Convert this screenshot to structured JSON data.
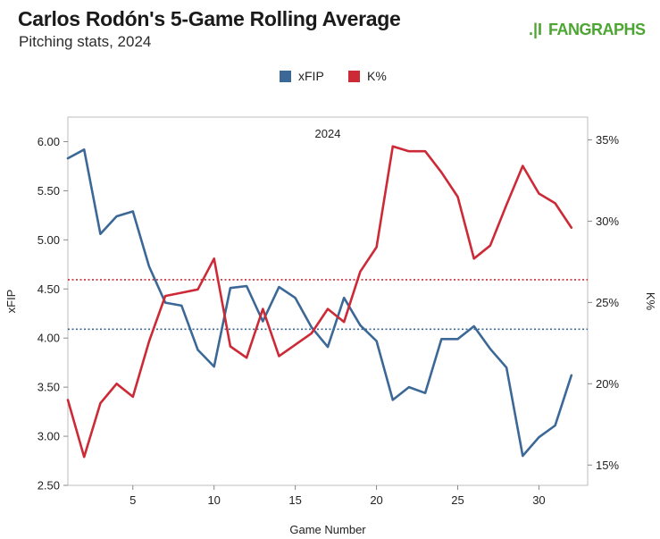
{
  "header": {
    "title": "Carlos Rodón's 5-Game Rolling Average",
    "subtitle": "Pitching stats, 2024",
    "logo_mark": ".|I",
    "logo_text": "FANGRAPHS"
  },
  "colors": {
    "xfip": "#3b6896",
    "kpct": "#cc2a36",
    "logo_green": "#4da534",
    "grid": "#d9d9d9"
  },
  "chart_data": {
    "type": "line",
    "title": "Carlos Rodón's 5-Game Rolling Average",
    "subtitle": "Pitching stats, 2024",
    "panel_label": "2024",
    "xlabel": "Game Number",
    "ylabel_left": "xFIP",
    "ylabel_right": "K%",
    "xlim": [
      1,
      33
    ],
    "x_ticks": [
      5,
      10,
      15,
      20,
      25,
      30
    ],
    "ylim_left": [
      2.5,
      6.25
    ],
    "y_ticks_left": [
      "2.50",
      "3.00",
      "3.50",
      "4.00",
      "4.50",
      "5.00",
      "5.50",
      "6.00"
    ],
    "ylim_right": [
      13.75,
      36.4
    ],
    "y_ticks_right": [
      "15%",
      "20%",
      "25%",
      "30%",
      "35%"
    ],
    "legend": [
      "xFIP",
      "K%"
    ],
    "legend_position": "top-center",
    "grid": false,
    "x": [
      1,
      2,
      3,
      4,
      5,
      6,
      7,
      8,
      9,
      10,
      11,
      12,
      13,
      14,
      15,
      16,
      17,
      18,
      19,
      20,
      21,
      22,
      23,
      24,
      25,
      26,
      27,
      28,
      29,
      30,
      31,
      32
    ],
    "series": [
      {
        "name": "xFIP",
        "axis": "left",
        "values": [
          5.83,
          5.92,
          5.06,
          5.24,
          5.29,
          4.73,
          4.36,
          4.33,
          3.88,
          3.71,
          4.51,
          4.53,
          4.17,
          4.52,
          4.41,
          4.11,
          3.91,
          4.41,
          4.13,
          3.97,
          3.37,
          3.5,
          3.44,
          3.99,
          3.99,
          4.12,
          3.89,
          3.7,
          2.8,
          2.99,
          3.11,
          3.62
        ],
        "reference_line": 4.09
      },
      {
        "name": "K%",
        "axis": "right",
        "values": [
          19.0,
          15.5,
          18.8,
          20.0,
          19.2,
          22.6,
          25.4,
          25.6,
          25.8,
          27.7,
          22.3,
          21.6,
          24.6,
          21.7,
          22.4,
          23.1,
          24.6,
          23.8,
          26.9,
          28.4,
          34.6,
          34.3,
          34.3,
          33.0,
          31.5,
          27.7,
          28.5,
          31.0,
          33.4,
          31.7,
          31.1,
          29.6
        ],
        "reference_line": 26.4
      }
    ]
  }
}
